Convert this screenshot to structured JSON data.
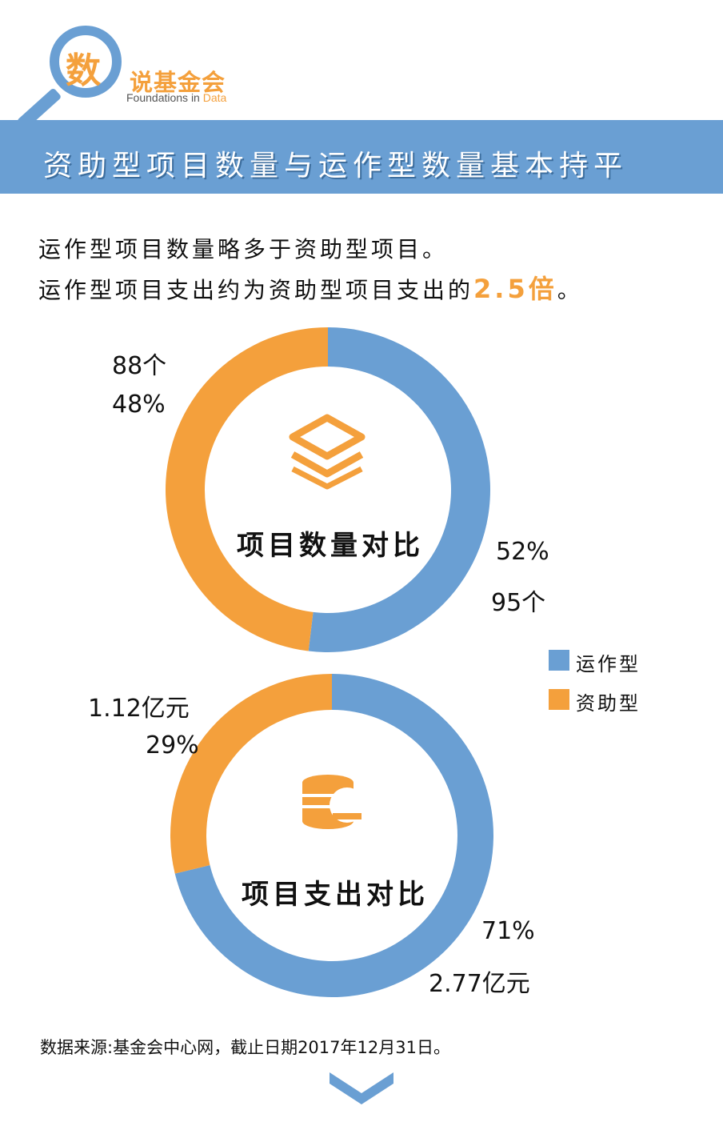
{
  "header": {
    "logo_char": "数",
    "logo_title": "说基金会",
    "logo_subtitle_main": "Foundations in",
    "logo_subtitle_accent": "Data",
    "banner_title": "资助型项目数量与运作型数量基本持平"
  },
  "intro": {
    "line1": "运作型项目数量略多于资助型项目。",
    "line2_prefix": "运作型项目支出约为资助型项目支出的",
    "line2_highlight": "2.5倍",
    "line2_suffix": "。"
  },
  "colors": {
    "operating": "#6a9fd3",
    "grant": "#f4a03c"
  },
  "icons": {
    "top_chart": "layers-icon",
    "bottom_chart": "coin-stack-icon",
    "footer": "chevron-down-icon"
  },
  "chart_data": [
    {
      "type": "pie",
      "title": "项目数量对比",
      "donut": true,
      "slices": [
        {
          "name": "运作型",
          "value": 95,
          "label_value": "95个",
          "label_pct": "52%"
        },
        {
          "name": "资助型",
          "value": 88,
          "label_value": "88个",
          "label_pct": "48%"
        }
      ]
    },
    {
      "type": "pie",
      "title": "项目支出对比",
      "donut": true,
      "slices": [
        {
          "name": "运作型",
          "value": 2.77,
          "label_value": "2.77亿元",
          "label_pct": "71%"
        },
        {
          "name": "资助型",
          "value": 1.12,
          "label_value": "1.12亿元",
          "label_pct": "29%"
        }
      ]
    }
  ],
  "legend": {
    "items": [
      {
        "name": "运作型"
      },
      {
        "name": "资助型"
      }
    ]
  },
  "footer": {
    "source": "数据来源:基金会中心网，截止日期2017年12月31日。"
  }
}
